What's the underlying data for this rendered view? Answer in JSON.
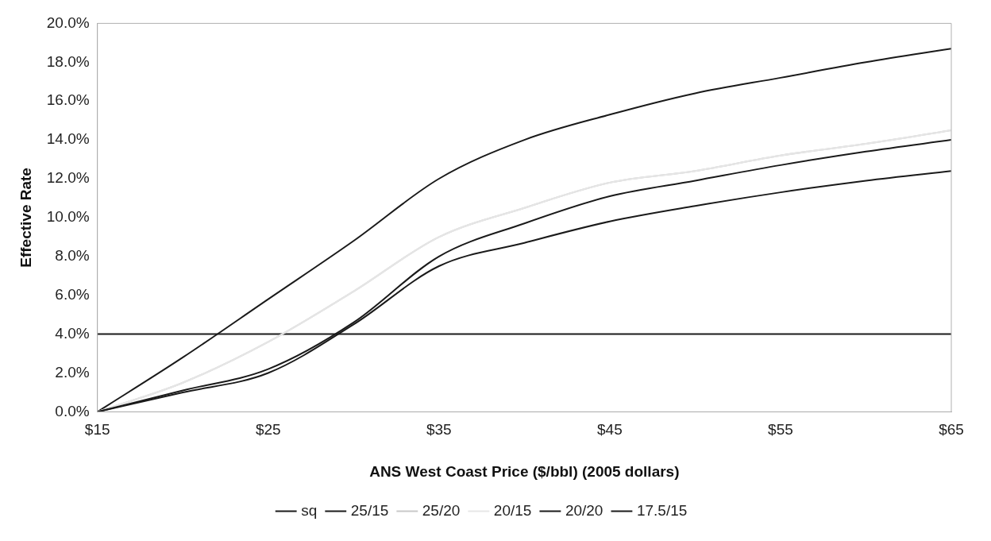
{
  "chart_data": {
    "type": "line",
    "xlabel": "ANS West Coast Price ($/bbl) (2005 dollars)",
    "ylabel": "Effective Rate",
    "x": [
      15,
      20,
      25,
      30,
      35,
      40,
      45,
      50,
      55,
      60,
      65
    ],
    "xlim": [
      15,
      65
    ],
    "xticks": [
      {
        "value": 15,
        "label": "$15"
      },
      {
        "value": 25,
        "label": "$25"
      },
      {
        "value": 35,
        "label": "$35"
      },
      {
        "value": 45,
        "label": "$45"
      },
      {
        "value": 55,
        "label": "$55"
      },
      {
        "value": 65,
        "label": "$65"
      }
    ],
    "ylim": [
      0,
      20
    ],
    "yticks": [
      {
        "value": 0,
        "label": "0.0%"
      },
      {
        "value": 2,
        "label": "2.0%"
      },
      {
        "value": 4,
        "label": "4.0%"
      },
      {
        "value": 6,
        "label": "6.0%"
      },
      {
        "value": 8,
        "label": "8.0%"
      },
      {
        "value": 10,
        "label": "10.0%"
      },
      {
        "value": 12,
        "label": "12.0%"
      },
      {
        "value": 14,
        "label": "14.0%"
      },
      {
        "value": 16,
        "label": "16.0%"
      },
      {
        "value": 18,
        "label": "18.0%"
      },
      {
        "value": 20,
        "label": "20.0%"
      }
    ],
    "series": [
      {
        "name": "sq",
        "color": "#1a1a1a",
        "values": [
          4,
          4,
          4,
          4,
          4,
          4,
          4,
          4,
          4,
          4,
          4
        ]
      },
      {
        "name": "25/15",
        "color": "#1a1a1a",
        "values": [
          0,
          2.8,
          5.8,
          8.8,
          12.0,
          14.0,
          15.3,
          16.4,
          17.2,
          18.0,
          18.7
        ]
      },
      {
        "name": "25/20",
        "color": "#c8c8c8",
        "values": [
          0,
          1.5,
          3.6,
          6.2,
          9.0,
          10.5,
          11.8,
          12.4,
          13.2,
          13.8,
          14.5
        ]
      },
      {
        "name": "20/15",
        "color": "#e6e6e6",
        "values": [
          0,
          1.5,
          3.6,
          6.2,
          9.0,
          10.5,
          11.8,
          12.4,
          13.2,
          13.8,
          14.5
        ]
      },
      {
        "name": "20/20",
        "color": "#1a1a1a",
        "values": [
          0,
          1.1,
          2.2,
          4.6,
          8.0,
          9.7,
          11.1,
          11.9,
          12.7,
          13.4,
          14.0
        ]
      },
      {
        "name": "17.5/15",
        "color": "#1a1a1a",
        "values": [
          0,
          1.0,
          2.0,
          4.5,
          7.5,
          8.7,
          9.8,
          10.6,
          11.3,
          11.9,
          12.4
        ]
      }
    ],
    "grid": false,
    "legend": "bottom",
    "marker": "none",
    "line_style": "solid"
  }
}
